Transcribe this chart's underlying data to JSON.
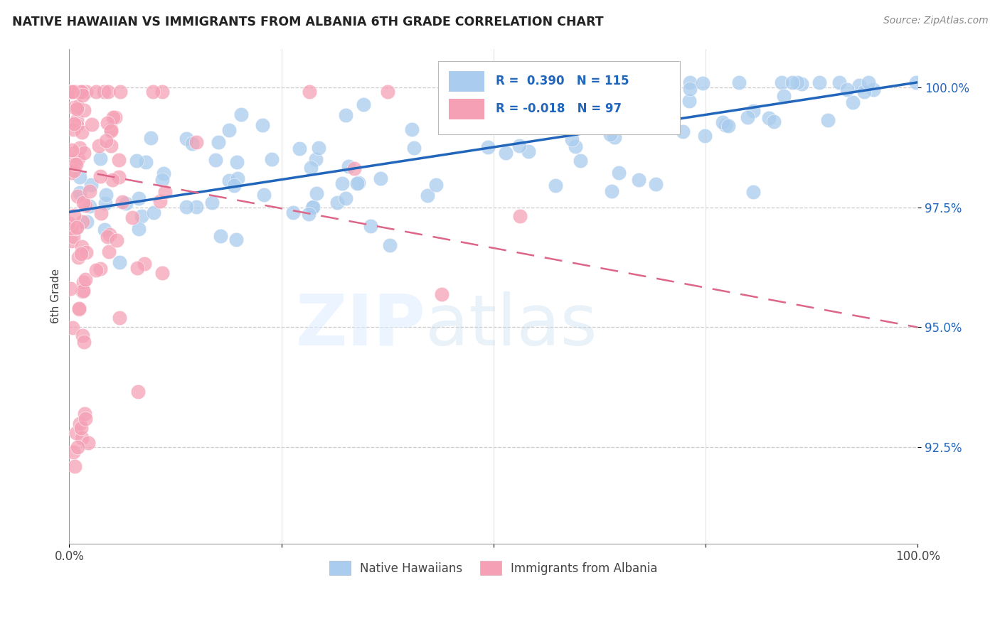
{
  "title": "NATIVE HAWAIIAN VS IMMIGRANTS FROM ALBANIA 6TH GRADE CORRELATION CHART",
  "source": "Source: ZipAtlas.com",
  "ylabel": "6th Grade",
  "ytick_labels": [
    "92.5%",
    "95.0%",
    "97.5%",
    "100.0%"
  ],
  "ytick_values": [
    0.925,
    0.95,
    0.975,
    1.0
  ],
  "xlim": [
    0.0,
    1.0
  ],
  "ylim": [
    0.905,
    1.008
  ],
  "blue_R": 0.39,
  "blue_N": 115,
  "pink_R": -0.018,
  "pink_N": 97,
  "blue_color": "#aaccee",
  "blue_line_color": "#2266bb",
  "pink_color": "#f5a0b5",
  "pink_line_color": "#dd6688",
  "watermark_zip": "ZIP",
  "watermark_atlas": "atlas",
  "legend_label_blue": "Native Hawaiians",
  "legend_label_pink": "Immigrants from Albania",
  "blue_trend_x": [
    0.0,
    1.0
  ],
  "blue_trend_y_start": 0.974,
  "blue_trend_y_end": 1.001,
  "pink_trend_x": [
    0.0,
    1.0
  ],
  "pink_trend_y_start": 0.983,
  "pink_trend_y_end": 0.95
}
